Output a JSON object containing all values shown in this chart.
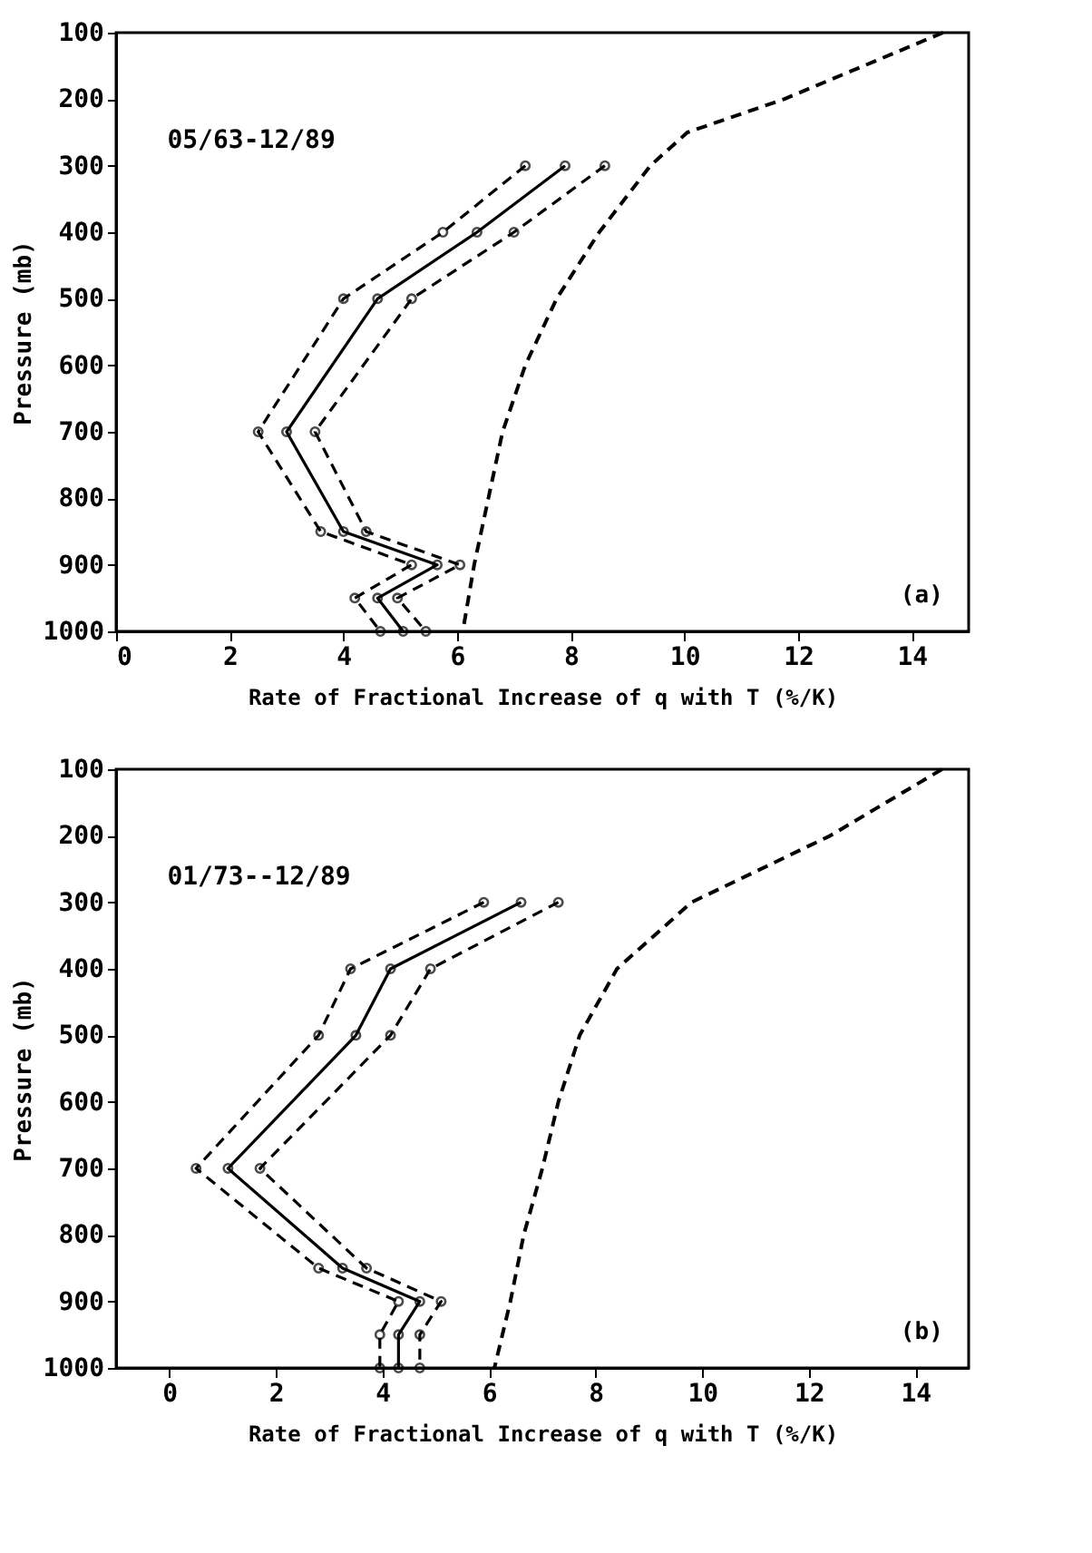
{
  "chart_data": [
    {
      "type": "line",
      "xlabel": "Rate of Fractional Increase of q with T (%/K)",
      "ylabel": "Pressure (mb)",
      "xlim": [
        0,
        15
      ],
      "xticks": [
        0,
        2,
        4,
        6,
        8,
        10,
        12,
        14
      ],
      "ylim": [
        1000,
        100
      ],
      "yticks": [
        100,
        200,
        300,
        400,
        500,
        600,
        700,
        800,
        900,
        1000
      ],
      "grid": false,
      "annotations": [
        "05/63-12/89",
        "(a)"
      ],
      "series": [
        {
          "color": "#000000",
          "marker": "circle",
          "line_style": "solid",
          "x": [
            7.9,
            6.35,
            4.6,
            3.0,
            4.0,
            5.65,
            4.6,
            5.05
          ],
          "values": [
            300,
            400,
            500,
            700,
            850,
            900,
            950,
            1000
          ]
        },
        {
          "color": "#000000",
          "marker": "circle",
          "line_style": "dashed",
          "x": [
            7.2,
            5.75,
            4.0,
            2.5,
            3.6,
            5.2,
            4.2,
            4.65
          ],
          "values": [
            300,
            400,
            500,
            700,
            850,
            900,
            950,
            1000
          ]
        },
        {
          "color": "#000000",
          "marker": "circle",
          "line_style": "dashed",
          "x": [
            8.6,
            7.0,
            5.2,
            3.5,
            4.4,
            6.05,
            4.95,
            5.45
          ],
          "values": [
            300,
            400,
            500,
            700,
            850,
            900,
            950,
            1000
          ]
        },
        {
          "color": "#000000",
          "marker": "none",
          "line_style": "dashed",
          "x": [
            14.55,
            11.75,
            10.05,
            9.4,
            8.5,
            7.75,
            7.2,
            6.8,
            6.55,
            6.3,
            6.1
          ],
          "values": [
            100,
            200,
            250,
            300,
            400,
            500,
            600,
            700,
            800,
            900,
            1000
          ]
        }
      ]
    },
    {
      "type": "line",
      "xlabel": "Rate of Fractional Increase of q with T (%/K)",
      "ylabel": "Pressure (mb)",
      "xlim": [
        -1,
        15
      ],
      "xticks": [
        0,
        2,
        4,
        6,
        8,
        10,
        12,
        14
      ],
      "ylim": [
        1000,
        100
      ],
      "yticks": [
        100,
        200,
        300,
        400,
        500,
        600,
        700,
        800,
        900,
        1000
      ],
      "grid": false,
      "annotations": [
        "01/73--12/89",
        "(b)"
      ],
      "series": [
        {
          "color": "#000000",
          "marker": "circle",
          "line_style": "solid",
          "x": [
            6.6,
            4.15,
            3.5,
            1.1,
            3.25,
            4.7,
            4.3,
            4.3
          ],
          "values": [
            300,
            400,
            500,
            700,
            850,
            900,
            950,
            1000
          ]
        },
        {
          "color": "#000000",
          "marker": "circle",
          "line_style": "dashed",
          "x": [
            5.9,
            3.4,
            2.8,
            0.5,
            2.8,
            4.3,
            3.95,
            3.95
          ],
          "values": [
            300,
            400,
            500,
            700,
            850,
            900,
            950,
            1000
          ]
        },
        {
          "color": "#000000",
          "marker": "circle",
          "line_style": "dashed",
          "x": [
            7.3,
            4.9,
            4.15,
            1.7,
            3.7,
            5.1,
            4.7,
            4.7
          ],
          "values": [
            300,
            400,
            500,
            700,
            850,
            900,
            950,
            1000
          ]
        },
        {
          "color": "#000000",
          "marker": "none",
          "line_style": "dashed",
          "x": [
            14.5,
            12.4,
            9.8,
            8.4,
            7.7,
            7.3,
            7.0,
            6.65,
            6.4,
            6.1
          ],
          "values": [
            100,
            200,
            300,
            400,
            500,
            600,
            700,
            800,
            900,
            1000
          ]
        }
      ]
    }
  ]
}
